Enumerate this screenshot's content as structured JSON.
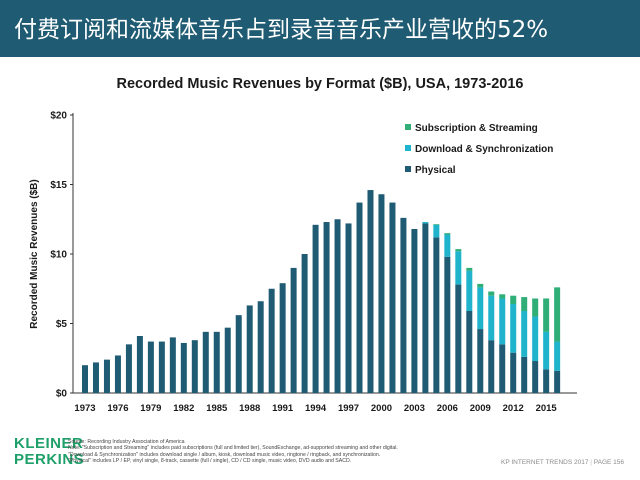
{
  "header": {
    "title": "付费订阅和流媒体音乐占到录音音乐产业营收的52%"
  },
  "colors": {
    "banner": "#1f5b73",
    "physical": "#1f5b73",
    "download": "#1fb3cc",
    "subscription": "#2fae78",
    "logo": "#1ea06a"
  },
  "chart_data": {
    "type": "bar",
    "stacked": true,
    "title": "Recorded Music Revenues by Format ($B), USA, 1973-2016",
    "xlabel": "",
    "ylabel": "Recorded Music Revenues ($B)",
    "ylim": [
      0,
      20
    ],
    "yticks": [
      "$0",
      "$5",
      "$10",
      "$15",
      "$20"
    ],
    "xticks": [
      "1973",
      "1976",
      "1979",
      "1982",
      "1985",
      "1988",
      "1991",
      "1994",
      "1997",
      "2000",
      "2003",
      "2006",
      "2009",
      "2012",
      "2015"
    ],
    "legend_position": "top-right",
    "legend": [
      "Subscription & Streaming",
      "Download & Synchronization",
      "Physical"
    ],
    "categories": [
      1973,
      1974,
      1975,
      1976,
      1977,
      1978,
      1979,
      1980,
      1981,
      1982,
      1983,
      1984,
      1985,
      1986,
      1987,
      1988,
      1989,
      1990,
      1991,
      1992,
      1993,
      1994,
      1995,
      1996,
      1997,
      1998,
      1999,
      2000,
      2001,
      2002,
      2003,
      2004,
      2005,
      2006,
      2007,
      2008,
      2009,
      2010,
      2011,
      2012,
      2013,
      2014,
      2015,
      2016
    ],
    "series": [
      {
        "name": "Physical",
        "color": "#1f5b73",
        "values": [
          2.0,
          2.2,
          2.4,
          2.7,
          3.5,
          4.1,
          3.7,
          3.7,
          4.0,
          3.6,
          3.8,
          4.4,
          4.4,
          4.7,
          5.6,
          6.3,
          6.6,
          7.5,
          7.9,
          9.0,
          10.0,
          12.1,
          12.3,
          12.5,
          12.2,
          13.7,
          14.6,
          14.3,
          13.7,
          12.6,
          11.8,
          12.2,
          11.2,
          9.8,
          7.8,
          5.9,
          4.6,
          3.8,
          3.5,
          2.9,
          2.6,
          2.3,
          1.7,
          1.6
        ]
      },
      {
        "name": "Download & Synchronization",
        "color": "#1fb3cc",
        "values": [
          0,
          0,
          0,
          0,
          0,
          0,
          0,
          0,
          0,
          0,
          0,
          0,
          0,
          0,
          0,
          0,
          0,
          0,
          0,
          0,
          0,
          0,
          0,
          0,
          0,
          0,
          0,
          0,
          0,
          0,
          0,
          0.1,
          0.9,
          1.6,
          2.4,
          2.9,
          3.0,
          3.2,
          3.3,
          3.5,
          3.3,
          3.2,
          2.7,
          2.1
        ]
      },
      {
        "name": "Subscription & Streaming",
        "color": "#2fae78",
        "values": [
          0,
          0,
          0,
          0,
          0,
          0,
          0,
          0,
          0,
          0,
          0,
          0,
          0,
          0,
          0,
          0,
          0,
          0,
          0,
          0,
          0,
          0,
          0,
          0,
          0,
          0,
          0,
          0,
          0,
          0,
          0,
          0,
          0.05,
          0.1,
          0.15,
          0.2,
          0.25,
          0.3,
          0.3,
          0.6,
          1.0,
          1.3,
          2.4,
          3.9
        ]
      }
    ]
  },
  "footer": {
    "logo_line1": "KLEINER",
    "logo_line2": "PERKINS",
    "notes": [
      "Source: Recording Industry Association of America",
      "Note: \"Subscription and Streaming\" includes paid subscriptions (full and limited tier), SoundExchange, ad-supported streaming and other digital.",
      "\"Download & Synchronization\" includes download single / album, kiosk, download music video, ringtone / ringback, and synchronization.",
      "\"Physical\" includes LP / EP, vinyl single, 8-track, cassette (full / single), CD / CD single, music video, DVD audio and SACD."
    ],
    "report": "KP INTERNET TRENDS 2017",
    "divider": "|",
    "page": "PAGE 156"
  }
}
